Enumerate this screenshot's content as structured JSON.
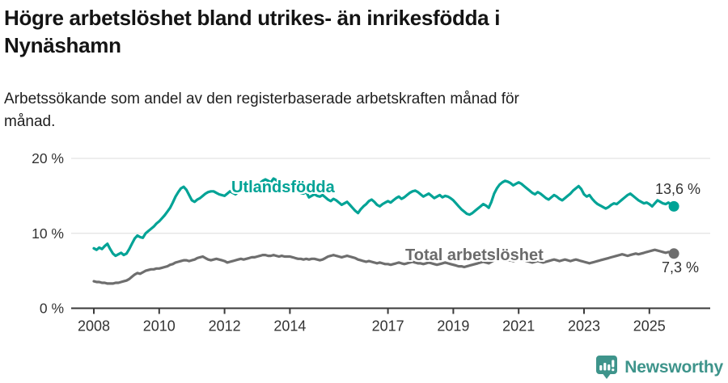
{
  "header": {
    "title": "Högre arbetslöshet bland utrikes- än inrikesfödda i Nynäshamn",
    "title_lines": [
      "Högre arbetslöshet bland utrikes- än inrikesfödda i",
      "Nynäshamn"
    ],
    "subtitle": "Arbetssökande som andel av den registerbaserade arbetskraften månad för månad.",
    "subtitle_lines": [
      "Arbetssökande som andel av den registerbaserade arbetskraften månad för",
      "månad."
    ]
  },
  "chart_data": {
    "type": "line",
    "title": "Högre arbetslöshet bland utrikes- än inrikesfödda i Nynäshamn",
    "subtitle": "Arbetssökande som andel av den registerbaserade arbetskraften månad för månad.",
    "xlabel": "",
    "ylabel": "",
    "unit": "%",
    "grid": "horizontal",
    "legend_position": "inline-labels",
    "ylim": [
      0,
      21
    ],
    "x_start_year": 2008,
    "frequency": "monthly",
    "y_ticks": [
      {
        "value": 0,
        "label": "0 %"
      },
      {
        "value": 10,
        "label": "10 %"
      },
      {
        "value": 20,
        "label": "20 %"
      }
    ],
    "x_ticks": [
      {
        "year": 2008,
        "label": "2008"
      },
      {
        "year": 2010,
        "label": "2010"
      },
      {
        "year": 2012,
        "label": "2012"
      },
      {
        "year": 2014,
        "label": "2014"
      },
      {
        "year": 2017,
        "label": "2017"
      },
      {
        "year": 2019,
        "label": "2019"
      },
      {
        "year": 2021,
        "label": "2021"
      },
      {
        "year": 2023,
        "label": "2023"
      },
      {
        "year": 2025,
        "label": "2025"
      }
    ],
    "series": [
      {
        "name": "Utlandsfödda",
        "color": "#00a396",
        "end_value": 13.6,
        "end_label": "13,6 %",
        "values": [
          8.0,
          7.8,
          8.1,
          7.9,
          8.3,
          8.6,
          7.9,
          7.3,
          7.0,
          7.2,
          7.4,
          7.1,
          7.3,
          7.9,
          8.6,
          9.3,
          9.7,
          9.5,
          9.4,
          10.0,
          10.3,
          10.6,
          10.9,
          11.3,
          11.6,
          12.0,
          12.4,
          12.9,
          13.4,
          14.1,
          14.9,
          15.5,
          16.0,
          16.2,
          15.8,
          15.1,
          14.4,
          14.2,
          14.5,
          14.7,
          15.0,
          15.3,
          15.5,
          15.6,
          15.6,
          15.4,
          15.2,
          15.1,
          15.0,
          15.3,
          15.6,
          15.4,
          15.2,
          15.5,
          15.7,
          15.6,
          15.8,
          16.0,
          16.2,
          16.1,
          16.3,
          16.7,
          17.0,
          17.2,
          17.0,
          16.8,
          17.3,
          17.1,
          16.8,
          16.6,
          16.5,
          16.4,
          16.2,
          16.0,
          15.8,
          15.6,
          15.4,
          15.3,
          15.5,
          14.8,
          15.0,
          15.2,
          15.0,
          14.9,
          15.1,
          14.8,
          14.5,
          14.3,
          14.6,
          14.4,
          14.1,
          13.8,
          14.0,
          14.2,
          13.8,
          13.4,
          13.0,
          12.7,
          13.2,
          13.6,
          13.9,
          14.3,
          14.5,
          14.2,
          13.8,
          13.6,
          13.9,
          14.1,
          14.3,
          14.1,
          14.4,
          14.7,
          14.9,
          14.6,
          14.8,
          15.1,
          15.4,
          15.6,
          15.7,
          15.5,
          15.2,
          14.9,
          15.1,
          15.3,
          15.0,
          14.7,
          14.9,
          15.1,
          14.8,
          15.0,
          14.9,
          14.7,
          14.4,
          14.0,
          13.6,
          13.2,
          12.9,
          12.6,
          12.5,
          12.7,
          13.0,
          13.3,
          13.6,
          13.9,
          13.7,
          13.4,
          14.2,
          15.3,
          16.0,
          16.5,
          16.8,
          17.0,
          16.9,
          16.7,
          16.4,
          16.6,
          16.8,
          16.6,
          16.3,
          16.0,
          15.7,
          15.4,
          15.2,
          15.5,
          15.3,
          15.0,
          14.7,
          14.5,
          14.8,
          15.1,
          14.9,
          14.6,
          14.4,
          14.7,
          15.0,
          15.3,
          15.7,
          16.0,
          16.3,
          15.9,
          15.2,
          14.9,
          15.1,
          14.6,
          14.2,
          13.9,
          13.7,
          13.5,
          13.3,
          13.5,
          13.8,
          14.0,
          13.9,
          14.2,
          14.5,
          14.8,
          15.1,
          15.3,
          15.0,
          14.7,
          14.4,
          14.2,
          14.0,
          14.1,
          13.9,
          13.6,
          14.0,
          14.4,
          14.2,
          14.0,
          13.9,
          14.1,
          13.8,
          13.6
        ]
      },
      {
        "name": "Total arbetslöshet",
        "color": "#6e6e6e",
        "end_value": 7.3,
        "end_label": "7,3 %",
        "values": [
          3.6,
          3.5,
          3.5,
          3.4,
          3.4,
          3.3,
          3.3,
          3.3,
          3.4,
          3.4,
          3.5,
          3.6,
          3.7,
          3.9,
          4.2,
          4.5,
          4.7,
          4.6,
          4.8,
          5.0,
          5.1,
          5.2,
          5.2,
          5.3,
          5.3,
          5.4,
          5.5,
          5.6,
          5.8,
          5.9,
          6.1,
          6.2,
          6.3,
          6.4,
          6.4,
          6.3,
          6.4,
          6.5,
          6.7,
          6.8,
          6.9,
          6.7,
          6.5,
          6.4,
          6.5,
          6.6,
          6.5,
          6.4,
          6.3,
          6.1,
          6.2,
          6.3,
          6.4,
          6.5,
          6.6,
          6.5,
          6.6,
          6.7,
          6.8,
          6.8,
          6.9,
          7.0,
          7.1,
          7.1,
          7.0,
          7.0,
          7.1,
          7.0,
          6.9,
          7.0,
          6.9,
          6.9,
          6.9,
          6.8,
          6.7,
          6.6,
          6.6,
          6.5,
          6.6,
          6.5,
          6.6,
          6.6,
          6.5,
          6.4,
          6.5,
          6.7,
          6.9,
          7.0,
          7.1,
          7.0,
          6.9,
          6.8,
          6.9,
          7.0,
          6.9,
          6.8,
          6.7,
          6.5,
          6.4,
          6.3,
          6.2,
          6.3,
          6.2,
          6.1,
          6.0,
          6.1,
          6.0,
          5.9,
          5.9,
          5.8,
          5.9,
          6.0,
          6.1,
          6.0,
          5.9,
          6.0,
          6.1,
          6.2,
          6.1,
          6.0,
          6.0,
          5.9,
          6.0,
          6.1,
          6.0,
          5.9,
          5.8,
          5.9,
          6.0,
          6.1,
          6.0,
          5.9,
          5.8,
          5.7,
          5.6,
          5.6,
          5.5,
          5.6,
          5.7,
          5.8,
          5.9,
          6.0,
          6.1,
          6.2,
          6.1,
          6.0,
          6.2,
          6.4,
          6.5,
          6.6,
          6.6,
          6.5,
          6.4,
          6.4,
          6.3,
          6.4,
          6.5,
          6.5,
          6.4,
          6.3,
          6.2,
          6.1,
          6.2,
          6.3,
          6.2,
          6.1,
          6.2,
          6.3,
          6.4,
          6.5,
          6.4,
          6.3,
          6.4,
          6.5,
          6.4,
          6.3,
          6.4,
          6.5,
          6.4,
          6.3,
          6.2,
          6.1,
          6.0,
          6.1,
          6.2,
          6.3,
          6.4,
          6.5,
          6.6,
          6.7,
          6.8,
          6.9,
          7.0,
          7.1,
          7.2,
          7.1,
          7.0,
          7.1,
          7.2,
          7.3,
          7.2,
          7.3,
          7.4,
          7.5,
          7.6,
          7.7,
          7.8,
          7.7,
          7.6,
          7.5,
          7.4,
          7.5,
          7.4,
          7.3
        ]
      }
    ]
  },
  "branding": {
    "logo_text": "Newsworthy",
    "logo_color": "#3e948b",
    "icon": "newsworthy-chart-bubble-icon"
  },
  "colors": {
    "accent_teal": "#00a396",
    "line_gray": "#6e6e6e",
    "axis": "#3a3a3a",
    "gridline": "#dcdcdc"
  }
}
